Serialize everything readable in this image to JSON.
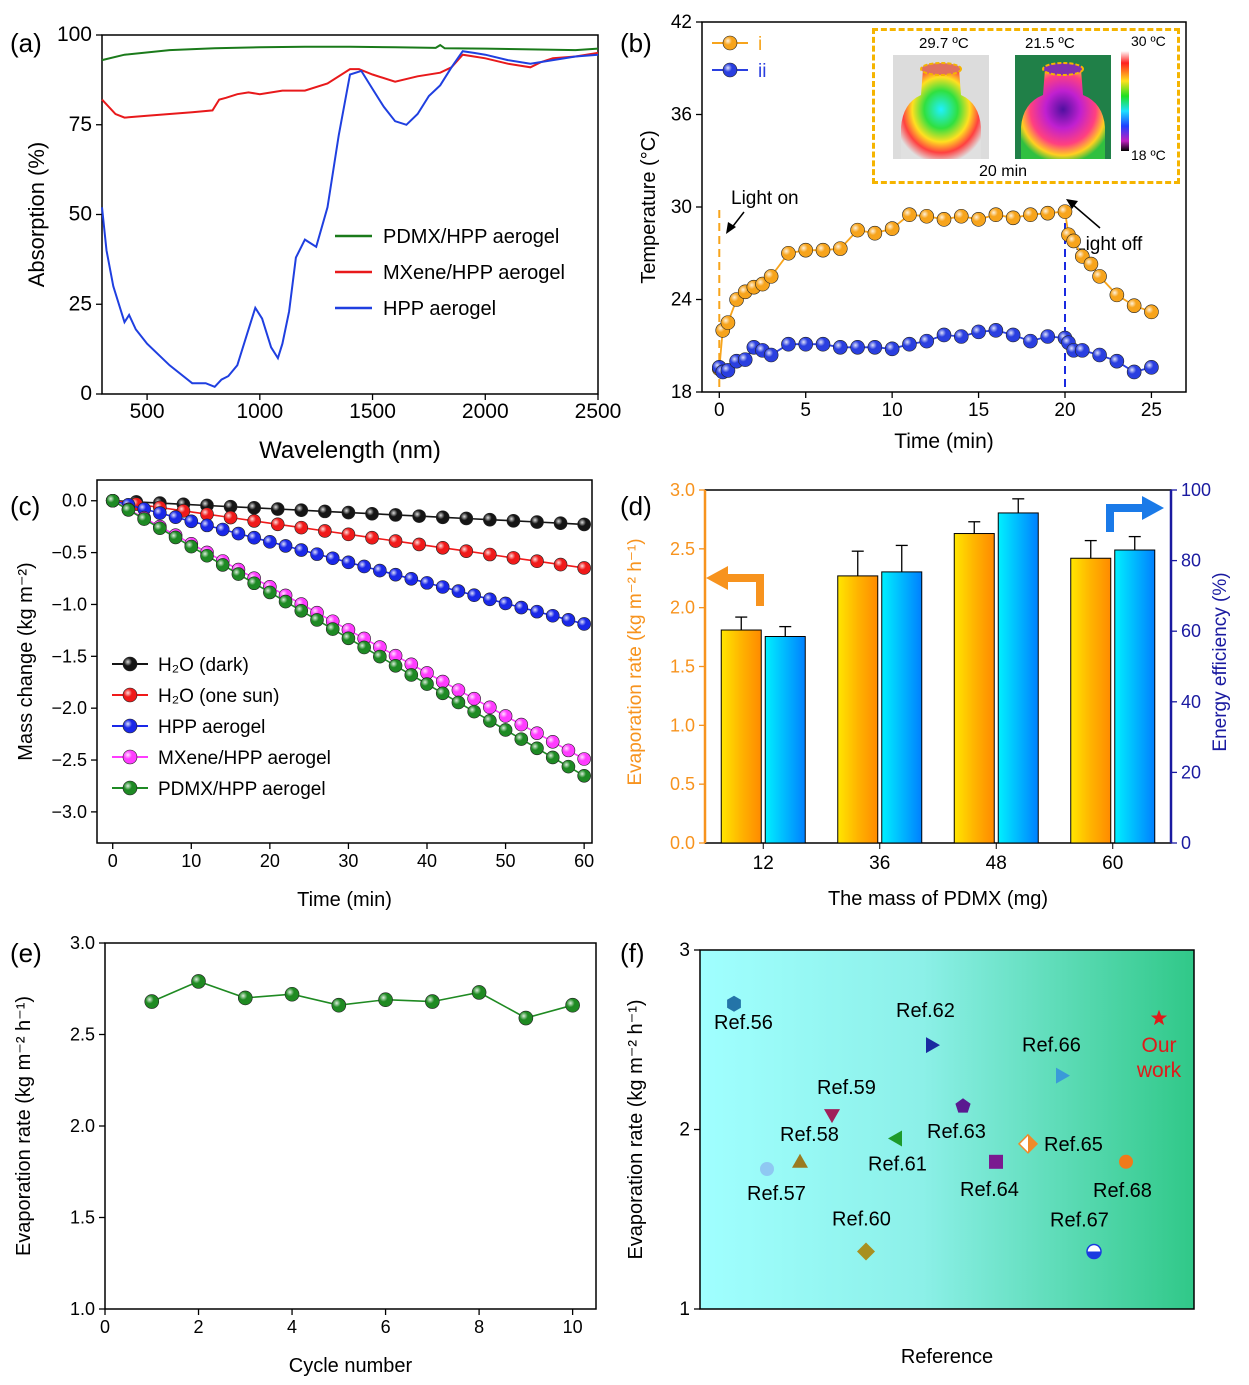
{
  "panels": {
    "a": "(a)",
    "b": "(b)",
    "c": "(c)",
    "d": "(d)",
    "e": "(e)",
    "f": "(f)"
  },
  "chart_data": [
    {
      "id": "a",
      "type": "line",
      "xlabel": "Wavelength (nm)",
      "ylabel": "Absorption (%)",
      "xlim": [
        300,
        2500
      ],
      "ylim": [
        0,
        100
      ],
      "xticks": [
        500,
        1000,
        1500,
        2000,
        2500
      ],
      "yticks": [
        0,
        25,
        50,
        75,
        100
      ],
      "legend_position": "center-right",
      "series": [
        {
          "name": "PDMX/HPP aerogel",
          "color": "#1a7a1a",
          "x": [
            300,
            400,
            600,
            800,
            1000,
            1200,
            1400,
            1600,
            1780,
            1800,
            1820,
            2000,
            2200,
            2400,
            2500
          ],
          "y": [
            93,
            94.5,
            95.8,
            96.3,
            96.6,
            96.7,
            96.7,
            96.6,
            96.4,
            97.2,
            96.3,
            96.2,
            96.0,
            95.8,
            96.2
          ]
        },
        {
          "name": "MXene/HPP aerogel",
          "color": "#e8191b",
          "x": [
            300,
            360,
            400,
            500,
            600,
            700,
            790,
            820,
            850,
            900,
            950,
            1000,
            1100,
            1200,
            1300,
            1400,
            1440,
            1500,
            1600,
            1700,
            1800,
            1850,
            1900,
            1950,
            2000,
            2100,
            2200,
            2250,
            2300,
            2400,
            2500
          ],
          "y": [
            82,
            78,
            77,
            77.5,
            78,
            78.5,
            79,
            82,
            82.5,
            83.5,
            84,
            83.5,
            84.5,
            84.5,
            86.5,
            90.5,
            90.5,
            89,
            87,
            88.5,
            89.5,
            91,
            94.5,
            94,
            93.5,
            92,
            91,
            92.5,
            93.5,
            94,
            95
          ]
        },
        {
          "name": "HPP aerogel",
          "color": "#1f3fe0",
          "x": [
            300,
            320,
            350,
            400,
            420,
            450,
            500,
            600,
            700,
            760,
            800,
            830,
            860,
            900,
            950,
            980,
            1010,
            1050,
            1080,
            1100,
            1130,
            1160,
            1200,
            1250,
            1300,
            1350,
            1400,
            1450,
            1500,
            1550,
            1600,
            1650,
            1700,
            1750,
            1800,
            1850,
            1900,
            1950,
            2000,
            2100,
            2200,
            2300,
            2400,
            2500
          ],
          "y": [
            52,
            40,
            30,
            20,
            22,
            18,
            14,
            8,
            3,
            3,
            2,
            4,
            5,
            8,
            18,
            24,
            21,
            13,
            10,
            14,
            23,
            38,
            43,
            41,
            52,
            72,
            89,
            90,
            85,
            80,
            76,
            75,
            78,
            83,
            86,
            91,
            95.5,
            95,
            94.5,
            93,
            92,
            93,
            94,
            94.5
          ]
        }
      ]
    },
    {
      "id": "b",
      "type": "line",
      "xlabel": "Time (min)",
      "ylabel": "Temperature (°C)",
      "xlim": [
        -1,
        27
      ],
      "ylim": [
        18,
        42
      ],
      "xticks": [
        0,
        5,
        10,
        15,
        20,
        25
      ],
      "yticks": [
        18,
        24,
        30,
        36,
        42
      ],
      "legend_position": "top-left",
      "annotations": [
        "Light on",
        "Light off"
      ],
      "inset": {
        "left_temp": "29.7 ºC",
        "right_temp": "21.5 ºC",
        "scale_max": "30 ºC",
        "scale_min": "18 ºC",
        "caption": "20 min"
      },
      "series": [
        {
          "name": "i",
          "color": "#f7a41c",
          "x": [
            0,
            0.2,
            0.5,
            1,
            1.5,
            2,
            2.5,
            3,
            4,
            5,
            6,
            7,
            8,
            9,
            10,
            11,
            12,
            13,
            14,
            15,
            16,
            17,
            18,
            19,
            20,
            20.2,
            20.5,
            21,
            21.5,
            22,
            23,
            24,
            25
          ],
          "y": [
            19.5,
            22,
            22.5,
            24,
            24.5,
            24.8,
            25,
            25.5,
            27,
            27.2,
            27.2,
            27.3,
            28.5,
            28.3,
            28.6,
            29.5,
            29.4,
            29.2,
            29.4,
            29.2,
            29.5,
            29.3,
            29.5,
            29.6,
            29.7,
            28.2,
            27.8,
            26.8,
            26.3,
            25.5,
            24.3,
            23.6,
            23.2
          ]
        },
        {
          "name": "ii",
          "color": "#2a3fe0",
          "x": [
            0,
            0.2,
            0.5,
            1,
            1.5,
            2,
            2.5,
            3,
            4,
            5,
            6,
            7,
            8,
            9,
            10,
            11,
            12,
            13,
            14,
            15,
            16,
            17,
            18,
            19,
            20,
            20.2,
            20.5,
            21,
            22,
            23,
            24,
            25
          ],
          "y": [
            19.6,
            19.3,
            19.4,
            20,
            20.1,
            20.9,
            20.7,
            20.4,
            21.1,
            21.1,
            21.1,
            20.9,
            20.9,
            20.9,
            20.8,
            21.1,
            21.3,
            21.7,
            21.6,
            21.9,
            22,
            21.7,
            21.3,
            21.6,
            21.5,
            21.2,
            20.7,
            20.7,
            20.4,
            20.0,
            19.3,
            19.6
          ]
        }
      ]
    },
    {
      "id": "c",
      "type": "line",
      "xlabel": "Time (min)",
      "ylabel": "Mass change (kg m⁻²)",
      "xlim": [
        -2,
        61
      ],
      "ylim": [
        -3.3,
        0.2
      ],
      "xticks": [
        0,
        10,
        20,
        30,
        40,
        50,
        60
      ],
      "yticks": [
        -3.0,
        -2.5,
        -2.0,
        -1.5,
        -1.0,
        -0.5,
        0.0
      ],
      "legend_position": "bottom-left",
      "series": [
        {
          "name": "H₂O (dark)",
          "color": "#151515",
          "slope": -0.0038
        },
        {
          "name": "H₂O (one sun)",
          "color": "#f01a1a",
          "slope": -0.0108
        },
        {
          "name": "HPP aerogel",
          "color": "#1a28e8",
          "slope": -0.0198
        },
        {
          "name": "MXene/HPP aerogel",
          "color": "#ff3cff",
          "slope": -0.0415
        },
        {
          "name": "PDMX/HPP aerogel",
          "color": "#1e8a24",
          "slope": -0.0442
        }
      ]
    },
    {
      "id": "d",
      "type": "bar",
      "xlabel": "The mass of PDMX (mg)",
      "ylabel": "Evaporation rate (kg m⁻² h⁻¹)",
      "ylabel_right": "Energy efficiency (%)",
      "categories": [
        "12",
        "36",
        "48",
        "60"
      ],
      "ylim": [
        0,
        3.0
      ],
      "ylim_right": [
        0,
        100
      ],
      "yticks": [
        0.0,
        0.5,
        1.0,
        1.5,
        2.0,
        2.5,
        3.0
      ],
      "yticks_right": [
        0,
        20,
        40,
        60,
        80,
        100
      ],
      "series": [
        {
          "name": "Evaporation rate",
          "axis": "left",
          "values": [
            1.81,
            2.27,
            2.63,
            2.42
          ],
          "errors": [
            0.11,
            0.21,
            0.1,
            0.15
          ]
        },
        {
          "name": "Energy efficiency",
          "axis": "right",
          "values": [
            58.5,
            76.8,
            93.5,
            83
          ],
          "errors": [
            2.8,
            7.5,
            4.0,
            3.8
          ]
        }
      ]
    },
    {
      "id": "e",
      "type": "line",
      "xlabel": "Cycle number",
      "ylabel": "Evaporation rate (kg m⁻² h⁻¹)",
      "xlim": [
        0,
        10.5
      ],
      "ylim": [
        1.0,
        3.0
      ],
      "xticks": [
        0,
        2,
        4,
        6,
        8,
        10
      ],
      "yticks": [
        1.0,
        1.5,
        2.0,
        2.5,
        3.0
      ],
      "series": [
        {
          "name": "",
          "color": "#1f8a22",
          "x": [
            1,
            2,
            3,
            4,
            5,
            6,
            7,
            8,
            9,
            10
          ],
          "y": [
            2.68,
            2.79,
            2.7,
            2.72,
            2.66,
            2.69,
            2.68,
            2.73,
            2.59,
            2.66
          ]
        }
      ]
    },
    {
      "id": "f",
      "type": "scatter",
      "xlabel": "Reference",
      "ylabel": "Evaporation rate (kg m⁻² h⁻¹)",
      "ylim": [
        1,
        3
      ],
      "yticks": [
        1,
        2,
        3
      ],
      "points": [
        {
          "label": "Ref.56",
          "x": 1,
          "y": 2.7,
          "shape": "hexagon",
          "color": "#2474a8"
        },
        {
          "label": "Ref.57",
          "x": 2,
          "y": 1.78,
          "shape": "circle",
          "color": "#8fc8f2"
        },
        {
          "label": "Ref.58",
          "x": 3,
          "y": 1.82,
          "shape": "triangle-up",
          "color": "#9a7a20"
        },
        {
          "label": "Ref.59",
          "x": 4,
          "y": 2.08,
          "shape": "triangle-down",
          "color": "#a0205a"
        },
        {
          "label": "Ref.60",
          "x": 5,
          "y": 1.32,
          "shape": "diamond",
          "color": "#a89020"
        },
        {
          "label": "Ref.61",
          "x": 6,
          "y": 1.95,
          "shape": "triangle-left",
          "color": "#1e9a2a"
        },
        {
          "label": "Ref.62",
          "x": 7,
          "y": 2.47,
          "shape": "triangle-right",
          "color": "#1a2aa0"
        },
        {
          "label": "Ref.63",
          "x": 8,
          "y": 2.13,
          "shape": "pentagon",
          "color": "#5a1a90"
        },
        {
          "label": "Ref.64",
          "x": 9,
          "y": 1.82,
          "shape": "square",
          "color": "#7a1a90"
        },
        {
          "label": "Ref.65",
          "x": 10,
          "y": 1.92,
          "shape": "diamond-half",
          "color": "#f08a2a"
        },
        {
          "label": "Ref.66",
          "x": 11,
          "y": 2.3,
          "shape": "triangle-right",
          "color": "#3a9ad8"
        },
        {
          "label": "Ref.67",
          "x": 12,
          "y": 1.32,
          "shape": "circle-half",
          "color": "#1a3ae0"
        },
        {
          "label": "Ref.68",
          "x": 13,
          "y": 1.82,
          "shape": "circle",
          "color": "#f07a1a"
        },
        {
          "label": "Our work",
          "x": 14,
          "y": 2.62,
          "shape": "star",
          "color": "#e01a1a"
        }
      ]
    }
  ]
}
